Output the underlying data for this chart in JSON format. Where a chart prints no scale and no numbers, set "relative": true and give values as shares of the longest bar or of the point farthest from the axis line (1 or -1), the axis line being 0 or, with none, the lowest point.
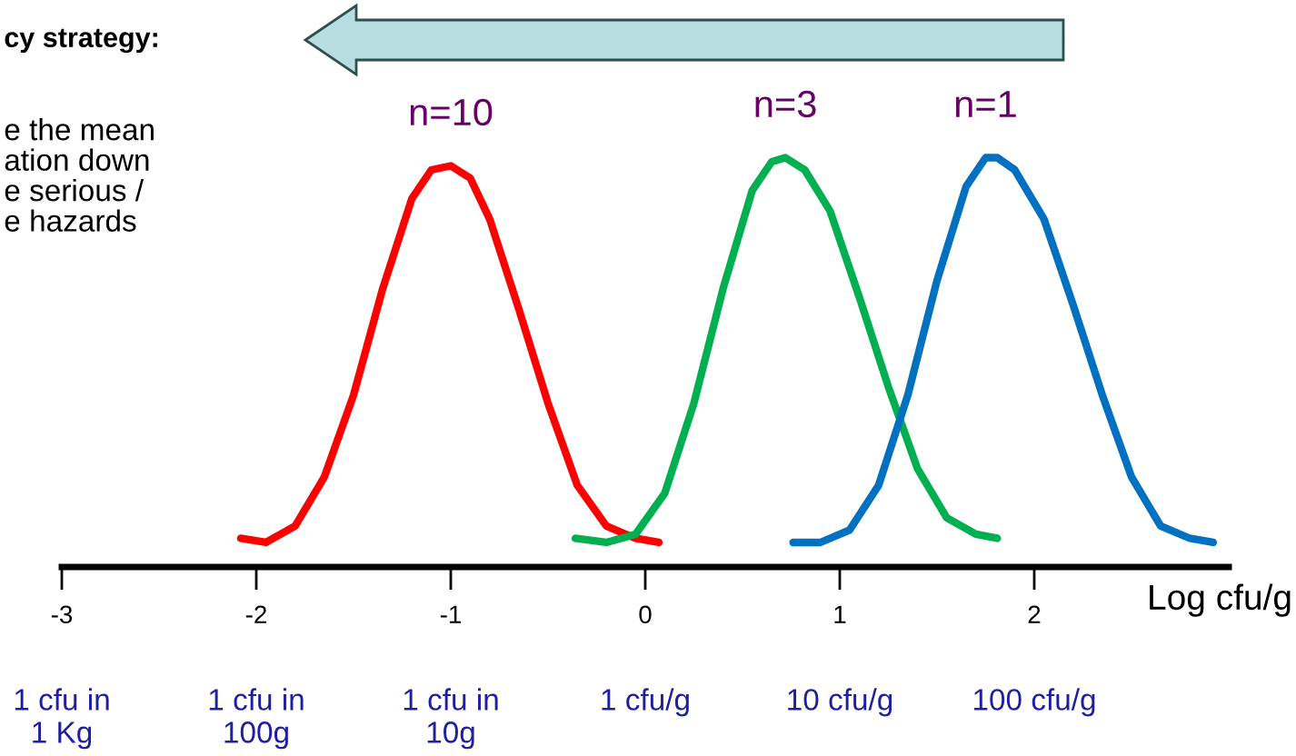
{
  "chart_data": {
    "type": "line",
    "relative": true,
    "title": "cy strategy:",
    "annotations": [
      "e the mean\nation down\ne serious /\ne hazards",
      "1 cfu in\n1 Kg",
      "1 cfu in\n100g",
      "1 cfu in\n10g",
      "1 cfu/g",
      "10 cfu/g",
      "100 cfu/g"
    ],
    "xlabel": "Log cfu/g",
    "xlim": [
      -3,
      3
    ],
    "xticks": [
      -3,
      -2,
      -1,
      0,
      1,
      2
    ],
    "grid": false,
    "legend": false,
    "marker": "none",
    "line_style": "solid",
    "series": [
      {
        "name": "n=10",
        "color": "#ff0000",
        "x": [
          -2.08,
          -1.95,
          -1.8,
          -1.65,
          -1.5,
          -1.35,
          -1.2,
          -1.1,
          -1.0,
          -0.9,
          -0.8,
          -0.65,
          -0.5,
          -0.35,
          -0.2,
          -0.05,
          0.07
        ],
        "values": [
          0.07,
          0.06,
          0.1,
          0.22,
          0.42,
          0.68,
          0.9,
          0.97,
          0.98,
          0.95,
          0.85,
          0.63,
          0.4,
          0.2,
          0.1,
          0.07,
          0.06
        ]
      },
      {
        "name": "n=3",
        "color": "#00b050",
        "x": [
          -0.36,
          -0.2,
          -0.05,
          0.1,
          0.25,
          0.4,
          0.55,
          0.65,
          0.72,
          0.82,
          0.95,
          1.1,
          1.25,
          1.4,
          1.55,
          1.7,
          1.81
        ],
        "values": [
          0.07,
          0.06,
          0.08,
          0.18,
          0.4,
          0.68,
          0.92,
          0.99,
          1.0,
          0.97,
          0.87,
          0.66,
          0.44,
          0.24,
          0.12,
          0.08,
          0.07
        ]
      },
      {
        "name": "n=1",
        "color": "#0070c0",
        "x": [
          0.76,
          0.9,
          1.05,
          1.2,
          1.35,
          1.5,
          1.65,
          1.75,
          1.81,
          1.9,
          2.05,
          2.2,
          2.35,
          2.5,
          2.65,
          2.8,
          2.92
        ],
        "values": [
          0.06,
          0.06,
          0.09,
          0.2,
          0.42,
          0.7,
          0.93,
          1.0,
          1.0,
          0.97,
          0.85,
          0.64,
          0.42,
          0.22,
          0.1,
          0.07,
          0.06
        ]
      }
    ]
  }
}
